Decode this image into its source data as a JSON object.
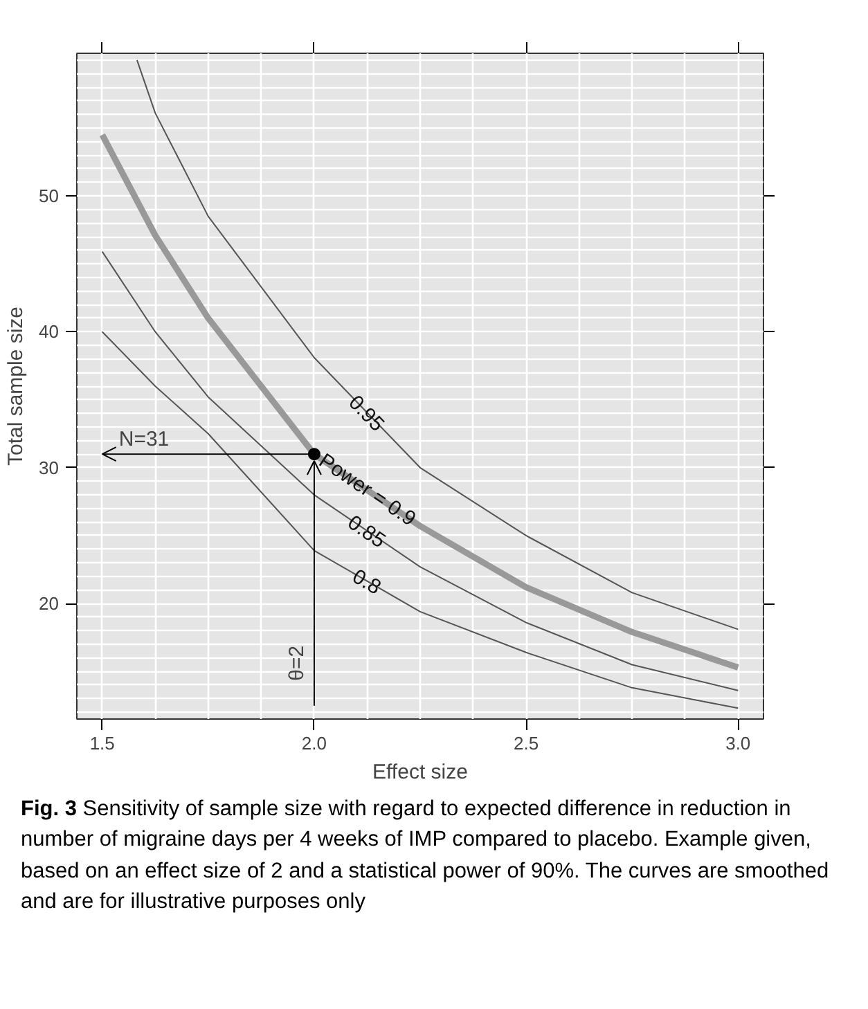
{
  "chart_data": {
    "type": "line",
    "xlabel": "Effect size",
    "ylabel": "Total sample size",
    "xlim": [
      1.44,
      3.06
    ],
    "ylim": [
      11.5,
      60.5
    ],
    "xticks": [
      {
        "value": 1.5,
        "label": "1.5"
      },
      {
        "value": 2.0,
        "label": "2.0"
      },
      {
        "value": 2.5,
        "label": "2.5"
      },
      {
        "value": 3.0,
        "label": "3.0"
      }
    ],
    "yticks": [
      20,
      30,
      40,
      50
    ],
    "grid": true,
    "marker": "none",
    "line_style": "solid",
    "series": [
      {
        "name": "0.95",
        "color": "#555555",
        "x": [
          1.582,
          1.625,
          1.75,
          2.0,
          2.25,
          2.5,
          2.75,
          3.0
        ],
        "values": [
          60.0,
          56.1,
          48.5,
          38.1,
          30.0,
          25.0,
          20.8,
          18.1
        ]
      },
      {
        "name": "Power = 0.9",
        "color": "#999999",
        "x": [
          1.5,
          1.625,
          1.75,
          2.0,
          2.25,
          2.5,
          2.75,
          3.0
        ],
        "values": [
          54.5,
          47.1,
          41.0,
          31.0,
          25.7,
          21.2,
          17.9,
          15.3
        ]
      },
      {
        "name": "0.85",
        "color": "#555555",
        "x": [
          1.5,
          1.625,
          1.75,
          2.0,
          2.25,
          2.5,
          2.75,
          3.0
        ],
        "values": [
          45.9,
          40.0,
          35.2,
          28.0,
          22.7,
          18.6,
          15.5,
          13.6
        ]
      },
      {
        "name": "0.8",
        "color": "#555555",
        "x": [
          1.5,
          1.625,
          1.75,
          2.0,
          2.25,
          2.5,
          2.75,
          3.0
        ],
        "values": [
          40.0,
          36.0,
          32.5,
          23.9,
          19.4,
          16.4,
          13.8,
          12.3
        ]
      },
      {
        "type": "scatter",
        "marker": "circle",
        "color": "#000000",
        "x": [
          2.0
        ],
        "values": [
          31
        ]
      }
    ],
    "annotations": [
      {
        "text": "N=31",
        "x": 2.0,
        "y": 31
      },
      {
        "text": "θ=2",
        "x": 2.0,
        "y": 31
      },
      "Fig. 3 Sensitivity of sample size with regard to expected difference in reduction in number of migraine days per 4 weeks of IMP compared to placebo. Example given, based on an effect size of 2 and a statistical power of 90%. The curves are smoothed and are for illustrative purposes only"
    ]
  }
}
